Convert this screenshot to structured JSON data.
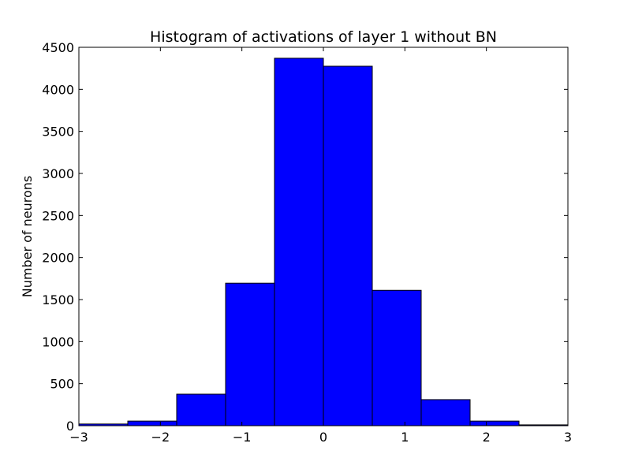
{
  "chart_data": {
    "type": "bar",
    "title": "Histogram of activations of layer 1  without BN",
    "xlabel": "",
    "ylabel": "Number of neurons",
    "xlim": [
      -3,
      3
    ],
    "ylim": [
      0,
      4500
    ],
    "bins": [
      {
        "x0": -3.0,
        "x1": -2.4,
        "value": 20
      },
      {
        "x0": -2.4,
        "x1": -1.8,
        "value": 55
      },
      {
        "x0": -1.8,
        "x1": -1.2,
        "value": 375
      },
      {
        "x0": -1.2,
        "x1": -0.6,
        "value": 1695
      },
      {
        "x0": -0.6,
        "x1": 0.0,
        "value": 4370
      },
      {
        "x0": 0.0,
        "x1": 0.6,
        "value": 4275
      },
      {
        "x0": 0.6,
        "x1": 1.2,
        "value": 1610
      },
      {
        "x0": 1.2,
        "x1": 1.8,
        "value": 310
      },
      {
        "x0": 1.8,
        "x1": 2.4,
        "value": 55
      },
      {
        "x0": 2.4,
        "x1": 3.0,
        "value": 10
      }
    ],
    "x_ticks": [
      -3,
      -2,
      -1,
      0,
      1,
      2,
      3
    ],
    "x_tick_labels": [
      "−3",
      "−2",
      "−1",
      "0",
      "1",
      "2",
      "3"
    ],
    "y_ticks": [
      0,
      500,
      1000,
      1500,
      2000,
      2500,
      3000,
      3500,
      4000,
      4500
    ],
    "y_tick_labels": [
      "0",
      "500",
      "1000",
      "1500",
      "2000",
      "2500",
      "3000",
      "3500",
      "4000",
      "4500"
    ],
    "grid": false,
    "colors": {
      "bar_fill": "#0000ff",
      "bar_edge": "#000000",
      "axes_edge": "#000000",
      "background": "#ffffff"
    }
  }
}
